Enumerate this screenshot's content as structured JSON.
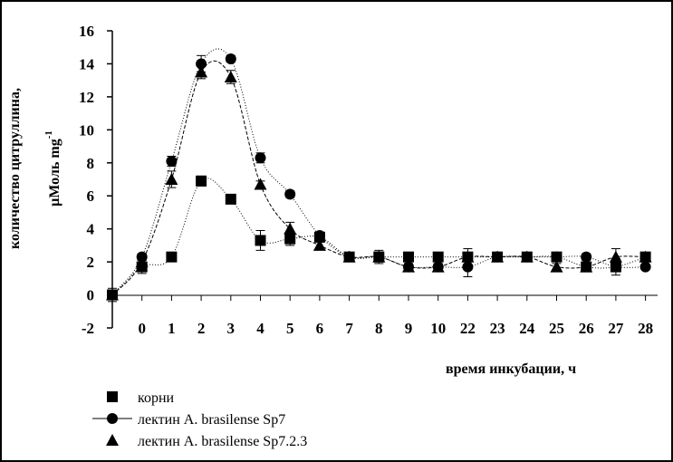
{
  "chart_data": {
    "type": "line",
    "title": "",
    "xlabel": "время инкубации, ч",
    "ylabel_line1": "количество цитруллина,",
    "ylabel_line2_main": "µМоль mg",
    "ylabel_line2_sup": "-1",
    "ylim": [
      -2,
      16
    ],
    "y_ticks": [
      "16",
      "14",
      "12",
      "10",
      "8",
      "6",
      "4",
      "2",
      "0",
      "-2"
    ],
    "categories": [
      "",
      "0",
      "1",
      "2",
      "3",
      "4",
      "5",
      "6",
      "7",
      "8",
      "9",
      "10",
      "22",
      "23",
      "24",
      "25",
      "26",
      "27",
      "28"
    ],
    "grid": false,
    "legend_position": "bottom-left",
    "series": [
      {
        "name": "корни",
        "marker": "square",
        "line": "dotted",
        "values": [
          0,
          1.7,
          2.3,
          6.9,
          5.8,
          3.3,
          3.4,
          3.5,
          2.3,
          2.3,
          2.3,
          2.3,
          2.3,
          2.3,
          2.3,
          2.3,
          1.7,
          1.7,
          2.3
        ],
        "errors": [
          0.4,
          0.4,
          0,
          0.3,
          0,
          0.6,
          0.4,
          0.2,
          0,
          0.4,
          0,
          0,
          0.5,
          0.2,
          0.2,
          0,
          0.2,
          0.5,
          0
        ]
      },
      {
        "name": "лектин A. brasilense Sp7",
        "marker": "circle",
        "line": "dotted",
        "values": [
          0,
          2.3,
          8.1,
          14.0,
          14.3,
          8.3,
          6.1,
          3.6,
          2.3,
          2.3,
          1.7,
          1.7,
          1.7,
          2.3,
          2.3,
          2.3,
          2.3,
          1.7,
          1.7
        ],
        "errors": [
          0.3,
          0.2,
          0.3,
          0.5,
          0.2,
          0.3,
          0.2,
          0.2,
          0,
          0.3,
          0.2,
          0.2,
          0.6,
          0.2,
          0.2,
          0,
          0.2,
          0.2,
          0
        ]
      },
      {
        "name": "лектин A. brasilense Sp7.2.3",
        "marker": "triangle",
        "line": "dashed",
        "values": [
          0,
          2.0,
          7.0,
          13.5,
          13.2,
          6.7,
          4.0,
          3.0,
          2.3,
          2.3,
          1.7,
          1.7,
          2.3,
          2.3,
          2.3,
          1.7,
          1.7,
          2.3,
          2.3
        ],
        "errors": [
          0.3,
          0.3,
          0.5,
          0.4,
          0.4,
          0.2,
          0.4,
          0.2,
          0,
          0.3,
          0.2,
          0.2,
          0.2,
          0.2,
          0.2,
          0.2,
          0.2,
          0.5,
          0
        ]
      }
    ]
  }
}
